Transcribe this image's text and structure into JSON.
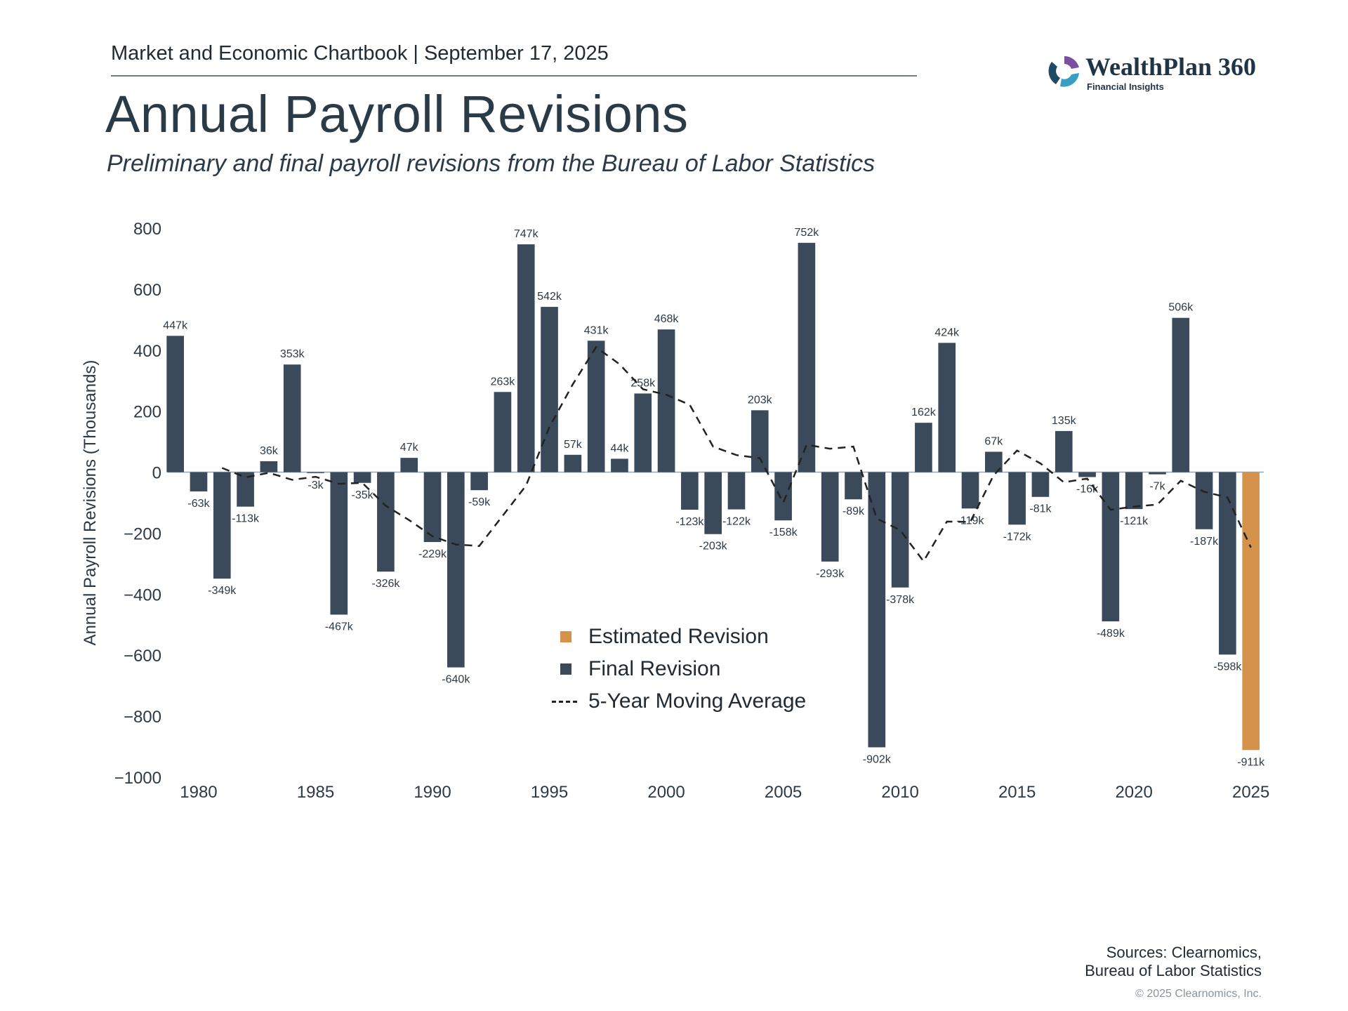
{
  "header": {
    "topline": "Market and Economic Chartbook | September 17, 2025",
    "title": "Annual Payroll Revisions",
    "subtitle": "Preliminary and final payroll revisions from the Bureau of Labor Statistics"
  },
  "logo": {
    "name": "WealthPlan 360",
    "tagline": "Financial Insights"
  },
  "legend": {
    "estimated": "Estimated Revision",
    "final": "Final Revision",
    "moving_average": "5-Year Moving Average"
  },
  "footer": {
    "sources_line1": "Sources: Clearnomics,",
    "sources_line2": "Bureau of Labor Statistics",
    "copyright": "© 2025 Clearnomics, Inc."
  },
  "colors": {
    "final": "#3a4a5b",
    "estimated": "#d4924a",
    "moving_average": "#222222"
  },
  "chart_data": {
    "type": "bar",
    "ylabel": "Annual Payroll Revisions (Thousands)",
    "ylim": [
      -1000,
      800
    ],
    "yticks": [
      800,
      600,
      400,
      200,
      0,
      -200,
      -400,
      -600,
      -800,
      -1000
    ],
    "ytick_labels": [
      "800",
      "600",
      "400",
      "200",
      "0",
      "−200",
      "−400",
      "−600",
      "−800",
      "−1000"
    ],
    "xticks": [
      1980,
      1985,
      1990,
      1995,
      2000,
      2005,
      2010,
      2015,
      2020,
      2025
    ],
    "legend_position": "center",
    "series": [
      {
        "name": "Final Revision",
        "x": [
          1979,
          1980,
          1981,
          1982,
          1983,
          1984,
          1985,
          1986,
          1987,
          1988,
          1989,
          1990,
          1991,
          1992,
          1993,
          1994,
          1995,
          1996,
          1997,
          1998,
          1999,
          2000,
          2001,
          2002,
          2003,
          2004,
          2005,
          2006,
          2007,
          2008,
          2009,
          2010,
          2011,
          2012,
          2013,
          2014,
          2015,
          2016,
          2017,
          2018,
          2019,
          2020,
          2021,
          2022,
          2023,
          2024
        ],
        "values": [
          447,
          -63,
          -349,
          -113,
          36,
          353,
          -3,
          -467,
          -35,
          -326,
          47,
          -229,
          -640,
          -59,
          263,
          747,
          542,
          57,
          431,
          44,
          258,
          468,
          -123,
          -203,
          -122,
          203,
          -158,
          752,
          -293,
          -89,
          -902,
          -378,
          162,
          424,
          -119,
          67,
          -172,
          -81,
          135,
          -16,
          -489,
          -121,
          -7,
          506,
          -187,
          -598
        ],
        "labels": [
          "447k",
          "-63k",
          "-349k",
          "-113k",
          "36k",
          "353k",
          "-3k",
          "-467k",
          "-35k",
          "-326k",
          "47k",
          "-229k",
          "-640k",
          "-59k",
          "263k",
          "747k",
          "542k",
          "57k",
          "431k",
          "44k",
          "258k",
          "468k",
          "-123k",
          "-203k",
          "-122k",
          "203k",
          "-158k",
          "752k",
          "-293k",
          "-89k",
          "-902k",
          "-378k",
          "162k",
          "424k",
          "-119k",
          "67k",
          "-172k",
          "-81k",
          "135k",
          "-16k",
          "-489k",
          "-121k",
          "-7k",
          "506k",
          "-187k",
          "-598k"
        ]
      },
      {
        "name": "Estimated Revision",
        "x": [
          2025
        ],
        "values": [
          -911
        ],
        "labels": [
          "-911k"
        ]
      },
      {
        "name": "5-Year Moving Average",
        "type": "line",
        "style": "dashed",
        "x": [
          1981,
          1982,
          1983,
          1984,
          1985,
          1986,
          1987,
          1988,
          1989,
          1990,
          1991,
          1992,
          1993,
          1994,
          1995,
          1996,
          1997,
          1998,
          1999,
          2000,
          2001,
          2002,
          2003,
          2004,
          2005,
          2006,
          2007,
          2008,
          2009,
          2010,
          2011,
          2012,
          2013,
          2014,
          2015,
          2016,
          2017,
          2018,
          2019,
          2020,
          2021,
          2022,
          2023,
          2024,
          2025
        ],
        "values": [
          14,
          -17,
          -2,
          -25,
          -15,
          -38,
          -35,
          -110,
          -157,
          -210,
          -237,
          -242,
          -143,
          -44,
          148,
          288,
          410,
          354,
          272,
          254,
          221,
          84,
          56,
          46,
          -100,
          90,
          77,
          84,
          -152,
          -190,
          -292,
          -162,
          -163,
          -10,
          71,
          29,
          -33,
          -21,
          -123,
          -113,
          -106,
          -28,
          -64,
          -83,
          -247
        ]
      }
    ]
  }
}
